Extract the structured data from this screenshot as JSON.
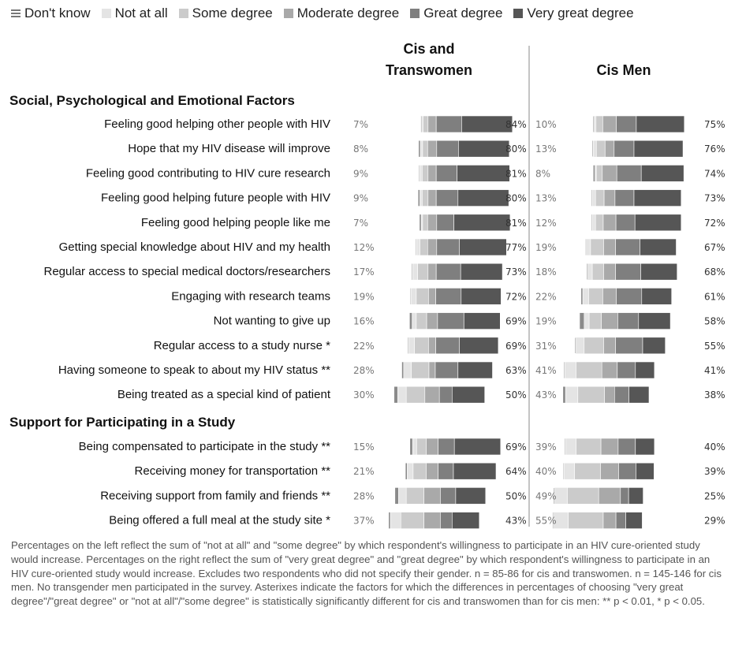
{
  "legend": [
    {
      "label": "Don't know",
      "color": "#8a8a8a"
    },
    {
      "label": "Not at all",
      "color": "#e4e4e4"
    },
    {
      "label": "Some degree",
      "color": "#cbcbcb"
    },
    {
      "label": "Moderate degree",
      "color": "#a9a9a9"
    },
    {
      "label": "Great degree",
      "color": "#7f7f7f"
    },
    {
      "label": "Very great degree",
      "color": "#565656"
    }
  ],
  "chart_data": {
    "type": "diverging stacked bar",
    "groups": [
      "Cis and Transwomen",
      "Cis Men"
    ],
    "sections": [
      {
        "title": "Social, Psychological and Emotional Factors",
        "rows": [
          {
            "label": "Feeling good helping other people with HIV",
            "women": {
              "left_pct": "7%",
              "right_pct": "84%",
              "segments": [
                1,
                1.5,
                5.5,
                9,
                28,
                56
              ]
            },
            "men": {
              "left_pct": "10%",
              "right_pct": "75%",
              "segments": [
                1,
                2.5,
                7.5,
                15,
                22,
                53
              ]
            }
          },
          {
            "label": "Hope that my HIV disease will improve",
            "women": {
              "left_pct": "8%",
              "right_pct": "80%",
              "segments": [
                2,
                2.5,
                5.5,
                10,
                24,
                56
              ]
            },
            "men": {
              "left_pct": "13%",
              "right_pct": "76%",
              "segments": [
                1,
                3.5,
                9.5,
                10,
                22,
                54
              ]
            }
          },
          {
            "label": "Feeling good contributing to HIV cure research",
            "women": {
              "left_pct": "9%",
              "right_pct": "81%",
              "segments": [
                1,
                2.5,
                6.5,
                9,
                23,
                58
              ]
            },
            "men": {
              "left_pct": "8%",
              "right_pct": "74%",
              "segments": [
                2,
                1.5,
                6.5,
                16,
                27,
                47
              ]
            }
          },
          {
            "label": "Feeling good helping future people with HIV",
            "women": {
              "left_pct": "9%",
              "right_pct": "80%",
              "segments": [
                2,
                2.5,
                6.5,
                9,
                24,
                56
              ]
            },
            "men": {
              "left_pct": "13%",
              "right_pct": "73%",
              "segments": [
                1,
                3.5,
                9.5,
                12,
                21,
                52
              ]
            }
          },
          {
            "label": "Feeling good helping people like me",
            "women": {
              "left_pct": "7%",
              "right_pct": "81%",
              "segments": [
                2,
                1.5,
                5.5,
                10,
                19,
                62
              ]
            },
            "men": {
              "left_pct": "12%",
              "right_pct": "72%",
              "segments": [
                1,
                3.5,
                8.5,
                14,
                21,
                51
              ]
            }
          },
          {
            "label": "Getting special knowledge about HIV and my health",
            "women": {
              "left_pct": "12%",
              "right_pct": "77%",
              "segments": [
                1,
                3.5,
                8.5,
                10,
                25,
                52
              ]
            },
            "men": {
              "left_pct": "19%",
              "right_pct": "67%",
              "segments": [
                1,
                4.5,
                14.5,
                13,
                27,
                40
              ]
            }
          },
          {
            "label": "Regular access to special medical doctors/researchers",
            "women": {
              "left_pct": "17%",
              "right_pct": "73%",
              "segments": [
                1,
                5.5,
                11.5,
                9,
                27,
                46
              ]
            },
            "men": {
              "left_pct": "18%",
              "right_pct": "68%",
              "segments": [
                1,
                5.5,
                12.5,
                13,
                28,
                40
              ]
            }
          },
          {
            "label": "Engaging with research teams",
            "women": {
              "left_pct": "19%",
              "right_pct": "72%",
              "segments": [
                1,
                5.5,
                13.5,
                8,
                28,
                44
              ]
            },
            "men": {
              "left_pct": "22%",
              "right_pct": "61%",
              "segments": [
                2,
                6.5,
                15.5,
                15,
                28,
                33
              ]
            }
          },
          {
            "label": "Not wanting to give up",
            "women": {
              "left_pct": "16%",
              "right_pct": "69%",
              "segments": [
                3,
                4.5,
                11.5,
                12,
                29,
                40
              ]
            },
            "men": {
              "left_pct": "19%",
              "right_pct": "58%",
              "segments": [
                5,
                5.5,
                13.5,
                18,
                23,
                35
              ]
            }
          },
          {
            "label": "Regular access to a study nurse *",
            "women": {
              "left_pct": "22%",
              "right_pct": "69%",
              "segments": [
                1,
                6.5,
                15.5,
                8,
                26,
                43
              ]
            },
            "men": {
              "left_pct": "31%",
              "right_pct": "55%",
              "segments": [
                1,
                9.5,
                21.5,
                13,
                30,
                25
              ]
            }
          },
          {
            "label": "Having someone to speak to about my HIV status **",
            "women": {
              "left_pct": "28%",
              "right_pct": "63%",
              "segments": [
                2,
                8.5,
                19.5,
                7,
                25,
                38
              ]
            },
            "men": {
              "left_pct": "41%",
              "right_pct": "41%",
              "segments": [
                1,
                12.5,
                28.5,
                17,
                20,
                21
              ]
            }
          },
          {
            "label": "Being treated as a special kind of patient",
            "women": {
              "left_pct": "30%",
              "right_pct": "50%",
              "segments": [
                4,
                9.5,
                20.5,
                16,
                14,
                36
              ]
            },
            "men": {
              "left_pct": "43%",
              "right_pct": "38%",
              "segments": [
                3,
                13.5,
                29.5,
                11,
                16,
                22
              ]
            }
          }
        ]
      },
      {
        "title": "Support for Participating in a Study",
        "rows": [
          {
            "label": "Being compensated to participate in the study **",
            "women": {
              "left_pct": "15%",
              "right_pct": "69%",
              "segments": [
                3,
                4.5,
                10.5,
                13,
                18,
                51
              ]
            },
            "men": {
              "left_pct": "39%",
              "right_pct": "40%",
              "segments": [
                1,
                11.5,
                27.5,
                19,
                19,
                21
              ]
            }
          },
          {
            "label": "Receiving money for transportation **",
            "women": {
              "left_pct": "21%",
              "right_pct": "64%",
              "segments": [
                2,
                6.5,
                14.5,
                13,
                17,
                47
              ]
            },
            "men": {
              "left_pct": "40%",
              "right_pct": "39%",
              "segments": [
                1,
                11.5,
                28.5,
                20,
                19,
                20
              ]
            }
          },
          {
            "label": "Receiving support from family and friends **",
            "women": {
              "left_pct": "28%",
              "right_pct": "50%",
              "segments": [
                4,
                8.5,
                19.5,
                18,
                17,
                33
              ]
            },
            "men": {
              "left_pct": "49%",
              "right_pct": "25%",
              "segments": [
                1,
                14.5,
                34.5,
                24,
                9,
                16
              ]
            }
          },
          {
            "label": "Being offered a full meal at the study site *",
            "women": {
              "left_pct": "37%",
              "right_pct": "43%",
              "segments": [
                2,
                11.5,
                25.5,
                18,
                13,
                30
              ]
            },
            "men": {
              "left_pct": "55%",
              "right_pct": "29%",
              "segments": [
                1,
                16.5,
                38.5,
                14,
                11,
                18
              ]
            }
          }
        ]
      }
    ]
  },
  "footnote": "Percentages on the left reflect the sum of \"not at all\" and \"some degree\" by which respondent's willingness to participate in an HIV cure-oriented study would increase. Percentages on the right reflect the sum of \"very great degree\" and \"great degree\" by which respondent's willingness to participate in an HIV cure-oriented study would increase. Excludes two respondents who did not specify their gender. n = 85-86 for cis and transwomen. n = 145-146 for cis men. No transgender men participated in the survey. Asterixes indicate the factors for which the differences in percentages of choosing \"very great degree\"/\"great degree\" or \"not at all\"/\"some degree\" is statistically significantly different for cis and transwomen than for cis men: ** p < 0.01, * p < 0.05."
}
